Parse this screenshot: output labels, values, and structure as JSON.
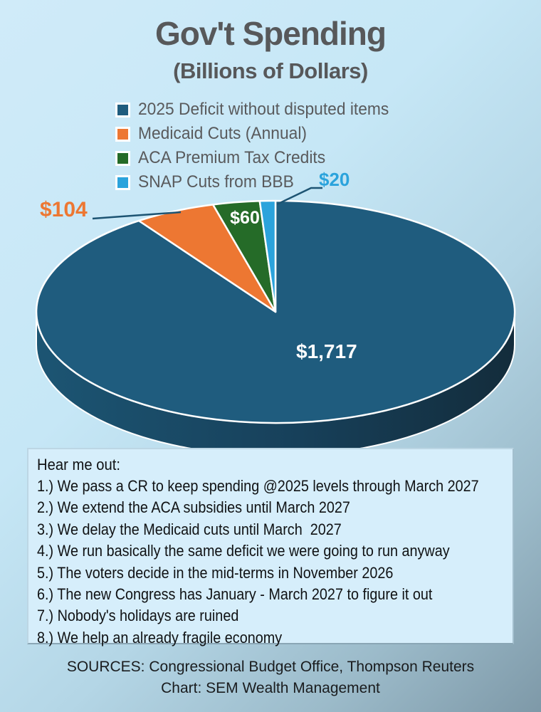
{
  "header": {
    "title": "Gov't Spending",
    "subtitle": "(Billions of Dollars)"
  },
  "legend": {
    "items": [
      {
        "label": "2025 Deficit without disputed items",
        "color": "#1F5C7E"
      },
      {
        "label": "Medicaid Cuts (Annual)",
        "color": "#ED7732"
      },
      {
        "label": "ACA Premium Tax Credits",
        "color": "#256B28"
      },
      {
        "label": "SNAP Cuts from BBB",
        "color": "#2BA3DC"
      }
    ]
  },
  "chart_data": {
    "type": "pie",
    "style": "3d",
    "title": "Gov't Spending (Billions of Dollars)",
    "unit": "billions of dollars",
    "categories": [
      "2025 Deficit without disputed items",
      "Medicaid Cuts (Annual)",
      "ACA Premium Tax Credits",
      "SNAP Cuts from BBB"
    ],
    "values": [
      1717,
      104,
      60,
      20
    ],
    "display_values": [
      "$1,717",
      "$104",
      "$60",
      "$20"
    ],
    "colors": [
      "#1F5C7E",
      "#ED7732",
      "#256B28",
      "#2BA3DC"
    ],
    "start_angle_deg": 0,
    "direction": "clockwise",
    "legend_position": "top",
    "leader_line_color": "#1D5473"
  },
  "note_box": {
    "heading": "Hear me out:",
    "lines": [
      "1.) We pass a CR to keep spending @2025 levels through March 2027",
      "2.) We extend the ACA subsidies until March 2027",
      "3.) We delay the Medicaid cuts until March  2027",
      "4.) We run basically the same deficit we were going to run anyway",
      "5.) The voters decide in the mid-terms in November 2026",
      "6.) The new Congress has January - March 2027 to figure it out",
      "7.) Nobody's holidays are ruined",
      "8.) We help an already fragile economy"
    ]
  },
  "footer": {
    "sources": "SOURCES: Congressional Budget Office, Thompson Reuters",
    "credit": "Chart: SEM Wealth Management"
  }
}
